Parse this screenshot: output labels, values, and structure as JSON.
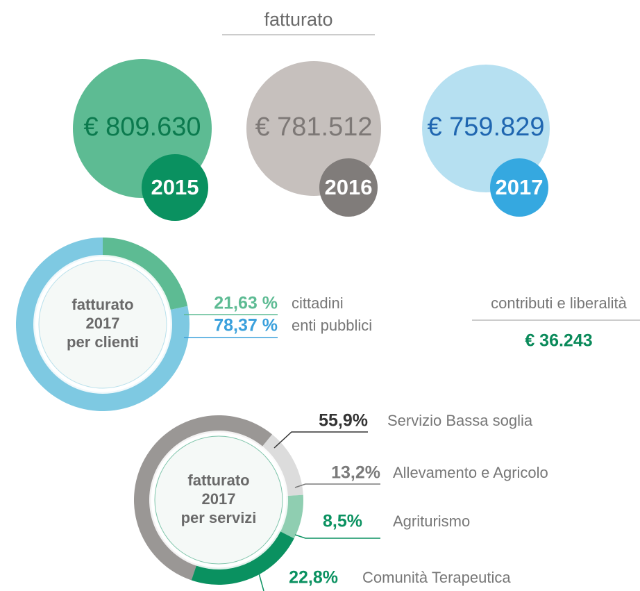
{
  "title": "fatturato",
  "years": [
    {
      "amount": "€ 809.630",
      "year": "2015",
      "color": "#5dbb93",
      "text_color": "#0b7a4e",
      "badge_color": "#0a9160"
    },
    {
      "amount": "€ 781.512",
      "year": "2016",
      "color": "#c6c0bd",
      "text_color": "#7d7876",
      "badge_color": "#807c7a"
    },
    {
      "amount": "€ 759.829",
      "year": "2017",
      "color": "#b6e0f1",
      "text_color": "#1f66b0",
      "badge_color": "#35a8e0"
    }
  ],
  "contributions": {
    "title": "contributi e liberalità",
    "amount": "€ 36.243",
    "color": "#0a8a5a"
  },
  "chart_data": [
    {
      "type": "donut",
      "center_text": [
        "fatturato",
        "2017",
        "per clienti"
      ],
      "categories": [
        "cittadini",
        "enti pubblici"
      ],
      "values": [
        21.63,
        78.37
      ],
      "value_labels": [
        "21,63 %",
        "78,37 %"
      ],
      "colors": [
        "#5dbb93",
        "#7ec9e2"
      ],
      "label_colors": [
        "#5dbb93",
        "#3aa0dc"
      ]
    },
    {
      "type": "donut",
      "center_text": [
        "fatturato",
        "2017",
        "per servizi"
      ],
      "categories": [
        "Servizio Bassa soglia",
        "Allevamento e Agricolo",
        "Agriturismo",
        "Comunità Terapeutica"
      ],
      "values": [
        55.9,
        13.2,
        8.5,
        22.8
      ],
      "value_labels": [
        "55,9%",
        "13,2%",
        "8,5%",
        "22,8%"
      ],
      "colors": [
        "#9a9795",
        "#dcdcdc",
        "#8fceb1",
        "#0a9160"
      ],
      "label_colors": [
        "#333333",
        "#7a7a7a",
        "#0a9160",
        "#0a9160"
      ]
    }
  ]
}
